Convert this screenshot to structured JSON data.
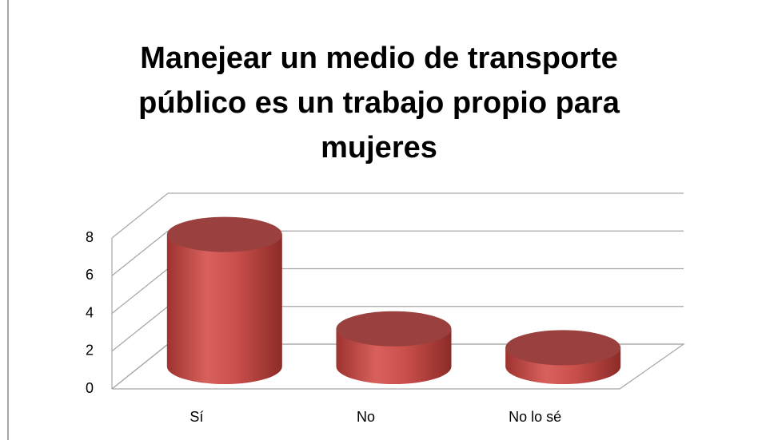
{
  "chart_data": {
    "type": "bar3d",
    "title": [
      "Manejear un medio de transporte",
      "público es un trabajo  propio para",
      "mujeres"
    ],
    "categories": [
      "Sí",
      "No",
      "No lo sé"
    ],
    "values": [
      7,
      2,
      1
    ],
    "color": "#c0504d",
    "ylim": [
      0,
      8
    ],
    "yticks": [
      0,
      2,
      4,
      6,
      8
    ],
    "grid": true
  }
}
